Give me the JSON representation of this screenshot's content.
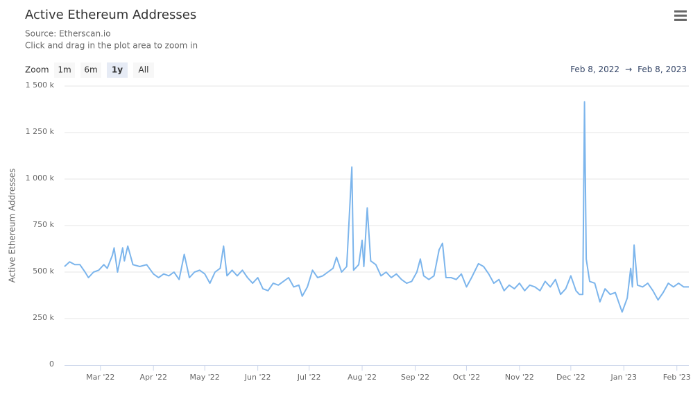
{
  "chart_data": {
    "type": "line",
    "title": "Active Ethereum Addresses",
    "subtitle": [
      "Source: Etherscan.io",
      "Click and drag in the plot area to zoom in"
    ],
    "zoom_label": "Zoom",
    "zoom_buttons": [
      "1m",
      "6m",
      "1y",
      "All"
    ],
    "zoom_selected": 2,
    "range_from": "Feb 8, 2022",
    "range_separator": "→",
    "range_to": "Feb 8, 2023",
    "y_label": "Active Ethereum Addresses",
    "grid": true,
    "xlim": [
      "2022-02-08",
      "2023-02-08"
    ],
    "xticks": [
      {
        "value": "2022-03-01",
        "label": "Mar '22"
      },
      {
        "value": "2022-04-01",
        "label": "Apr '22"
      },
      {
        "value": "2022-05-01",
        "label": "May '22"
      },
      {
        "value": "2022-06-01",
        "label": "Jun '22"
      },
      {
        "value": "2022-07-01",
        "label": "Jul '22"
      },
      {
        "value": "2022-08-01",
        "label": "Aug '22"
      },
      {
        "value": "2022-09-01",
        "label": "Sep '22"
      },
      {
        "value": "2022-10-01",
        "label": "Oct '22"
      },
      {
        "value": "2022-11-01",
        "label": "Nov '22"
      },
      {
        "value": "2022-12-01",
        "label": "Dec '22"
      },
      {
        "value": "2023-01-01",
        "label": "Jan '23"
      },
      {
        "value": "2023-02-01",
        "label": "Feb '23"
      }
    ],
    "ylim": [
      0,
      1500000
    ],
    "yticks": [
      0,
      {
        "value": 250000,
        "label": "250 k"
      },
      {
        "value": 500000,
        "label": "500 k"
      },
      {
        "value": 750000,
        "label": "750 k"
      },
      {
        "value": 1000000,
        "label": "1 000 k"
      },
      {
        "value": 1250000,
        "label": "1 250 k"
      },
      {
        "value": 1500000,
        "label": "1 500 k"
      }
    ],
    "series": [
      {
        "name": "Active Ethereum Addresses",
        "color": "#7cb5ec",
        "x": [
          "2022-02-08",
          "2022-02-11",
          "2022-02-14",
          "2022-02-17",
          "2022-02-20",
          "2022-02-22",
          "2022-02-25",
          "2022-02-28",
          "2022-03-03",
          "2022-03-05",
          "2022-03-08",
          "2022-03-09",
          "2022-03-11",
          "2022-03-14",
          "2022-03-15",
          "2022-03-17",
          "2022-03-20",
          "2022-03-24",
          "2022-03-28",
          "2022-04-01",
          "2022-04-04",
          "2022-04-07",
          "2022-04-10",
          "2022-04-13",
          "2022-04-16",
          "2022-04-19",
          "2022-04-22",
          "2022-04-25",
          "2022-04-28",
          "2022-05-01",
          "2022-05-04",
          "2022-05-07",
          "2022-05-10",
          "2022-05-12",
          "2022-05-14",
          "2022-05-17",
          "2022-05-20",
          "2022-05-23",
          "2022-05-26",
          "2022-05-29",
          "2022-06-01",
          "2022-06-04",
          "2022-06-07",
          "2022-06-10",
          "2022-06-13",
          "2022-06-16",
          "2022-06-19",
          "2022-06-22",
          "2022-06-25",
          "2022-06-27",
          "2022-06-30",
          "2022-07-03",
          "2022-07-06",
          "2022-07-09",
          "2022-07-12",
          "2022-07-15",
          "2022-07-17",
          "2022-07-20",
          "2022-07-23",
          "2022-07-26",
          "2022-07-27",
          "2022-07-30",
          "2022-08-01",
          "2022-08-02",
          "2022-08-04",
          "2022-08-06",
          "2022-08-09",
          "2022-08-12",
          "2022-08-15",
          "2022-08-18",
          "2022-08-21",
          "2022-08-24",
          "2022-08-27",
          "2022-08-30",
          "2022-09-02",
          "2022-09-04",
          "2022-09-06",
          "2022-09-09",
          "2022-09-12",
          "2022-09-15",
          "2022-09-17",
          "2022-09-19",
          "2022-09-22",
          "2022-09-25",
          "2022-09-28",
          "2022-10-01",
          "2022-10-04",
          "2022-10-08",
          "2022-10-11",
          "2022-10-14",
          "2022-10-17",
          "2022-10-20",
          "2022-10-23",
          "2022-10-26",
          "2022-10-29",
          "2022-11-01",
          "2022-11-04",
          "2022-11-07",
          "2022-11-10",
          "2022-11-13",
          "2022-11-16",
          "2022-11-19",
          "2022-11-22",
          "2022-11-25",
          "2022-11-28",
          "2022-12-01",
          "2022-12-04",
          "2022-12-06",
          "2022-12-08",
          "2022-12-09",
          "2022-12-10",
          "2022-12-12",
          "2022-12-15",
          "2022-12-18",
          "2022-12-21",
          "2022-12-24",
          "2022-12-27",
          "2022-12-31",
          "2023-01-03",
          "2023-01-05",
          "2023-01-06",
          "2023-01-07",
          "2023-01-09",
          "2023-01-12",
          "2023-01-15",
          "2023-01-18",
          "2023-01-21",
          "2023-01-24",
          "2023-01-27",
          "2023-01-30",
          "2023-02-02",
          "2023-02-05",
          "2023-02-08"
        ],
        "values": [
          530000,
          555000,
          540000,
          540000,
          500000,
          470000,
          500000,
          510000,
          540000,
          520000,
          590000,
          630000,
          500000,
          630000,
          560000,
          640000,
          540000,
          530000,
          540000,
          490000,
          470000,
          490000,
          480000,
          500000,
          460000,
          595000,
          470000,
          500000,
          510000,
          490000,
          440000,
          500000,
          520000,
          640000,
          480000,
          510000,
          480000,
          510000,
          470000,
          440000,
          470000,
          410000,
          400000,
          440000,
          430000,
          450000,
          470000,
          420000,
          430000,
          370000,
          420000,
          510000,
          470000,
          480000,
          500000,
          520000,
          580000,
          500000,
          530000,
          1065000,
          510000,
          540000,
          670000,
          530000,
          845000,
          560000,
          540000,
          480000,
          500000,
          470000,
          490000,
          460000,
          440000,
          450000,
          500000,
          570000,
          480000,
          460000,
          480000,
          620000,
          655000,
          470000,
          470000,
          460000,
          490000,
          420000,
          470000,
          545000,
          530000,
          490000,
          440000,
          460000,
          400000,
          430000,
          410000,
          440000,
          400000,
          430000,
          420000,
          400000,
          450000,
          420000,
          460000,
          380000,
          410000,
          480000,
          400000,
          380000,
          380000,
          1415000,
          570000,
          450000,
          440000,
          340000,
          410000,
          380000,
          390000,
          285000,
          360000,
          520000,
          420000,
          645000,
          430000,
          420000,
          440000,
          400000,
          350000,
          390000,
          440000,
          420000,
          440000,
          420000,
          420000
        ]
      }
    ]
  }
}
